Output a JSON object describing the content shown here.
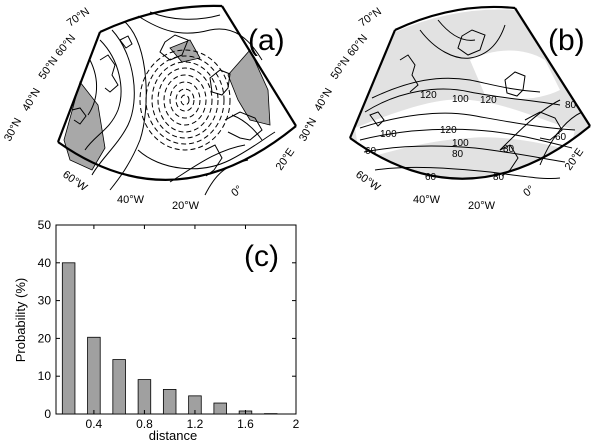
{
  "panels": {
    "a": {
      "letter": "(a)"
    },
    "b": {
      "letter": "(b)"
    },
    "c": {
      "letter": "(c)"
    }
  },
  "map_a": {
    "lat_labels": [
      "70°N",
      "60°N",
      "50°N",
      "40°N",
      "30°N"
    ],
    "lon_labels": [
      "60°W",
      "40°W",
      "20°W",
      "0°",
      "20°E"
    ]
  },
  "map_b": {
    "lat_labels": [
      "70°N",
      "60°N",
      "50°N",
      "40°N",
      "30°N"
    ],
    "lon_labels": [
      "60°W",
      "40°W",
      "20°W",
      "0°",
      "20°E"
    ],
    "contour_labels": [
      "120",
      "100",
      "120",
      "100",
      "80",
      "100",
      "60",
      "120",
      "80",
      "60",
      "80",
      "60",
      "80"
    ]
  },
  "chart_data": {
    "type": "bar",
    "x": [
      0.2,
      0.4,
      0.6,
      0.8,
      1.0,
      1.2,
      1.4,
      1.6,
      1.8
    ],
    "values": [
      40,
      20.3,
      14.4,
      9.1,
      6.5,
      4.8,
      2.9,
      0.8,
      0.1
    ],
    "xlabel": "distance",
    "ylabel": "Probability (%)",
    "xlim": [
      0.1,
      2.0
    ],
    "ylim": [
      0,
      50
    ],
    "xticks": [
      0.4,
      0.8,
      1.2,
      1.6,
      2.0
    ],
    "xtick_labels": [
      "0.4",
      "0.8",
      "1.2",
      "1.6",
      "2"
    ],
    "yticks": [
      0,
      10,
      20,
      30,
      40,
      50
    ],
    "ytick_labels": [
      "0",
      "10",
      "20",
      "30",
      "40",
      "50"
    ],
    "bar_color": "#a0a0a0",
    "grid": false
  }
}
